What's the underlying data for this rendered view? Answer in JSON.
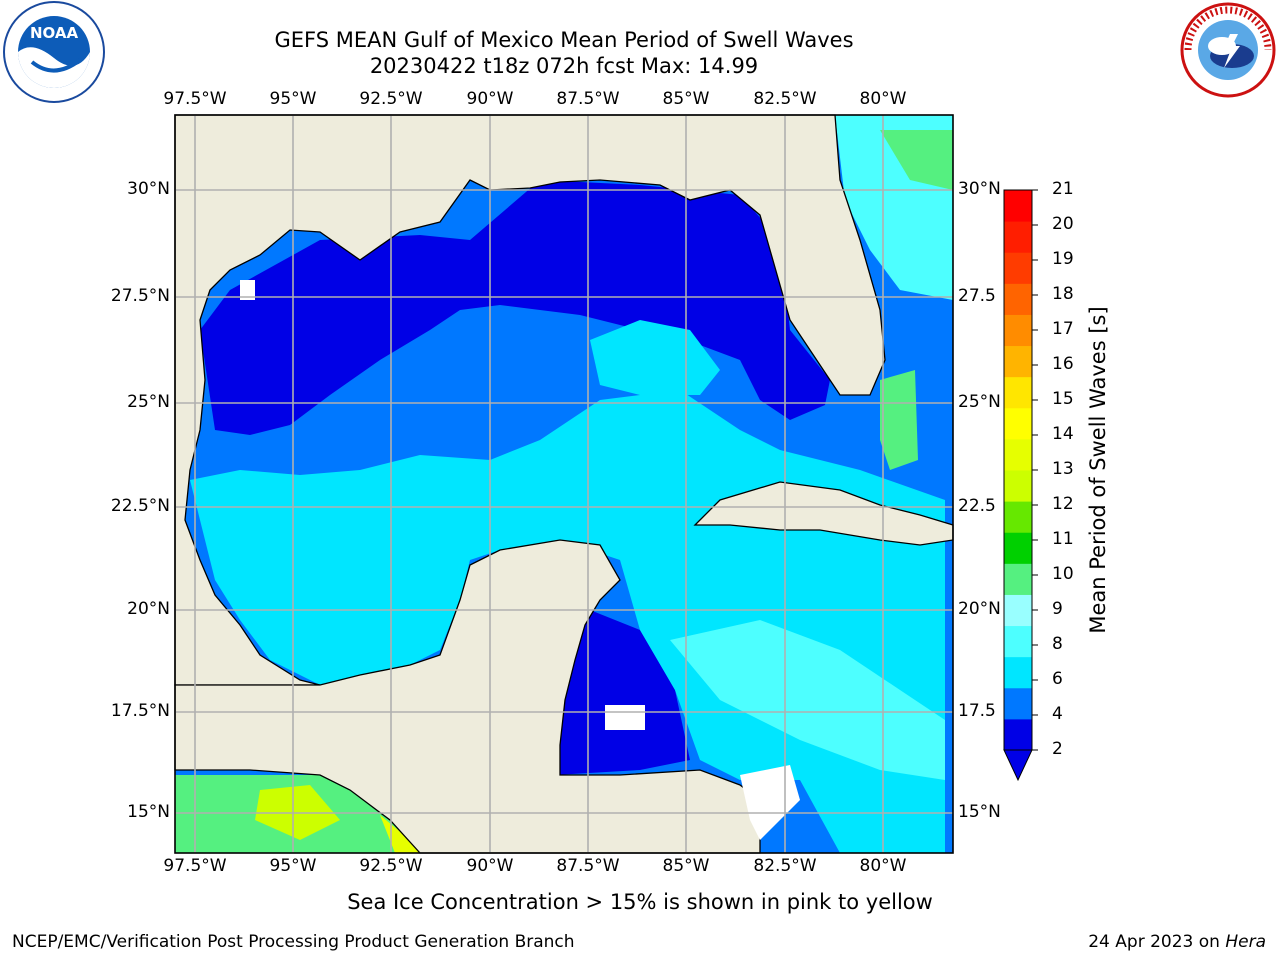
{
  "title": {
    "line1": "GEFS MEAN Gulf of Mexico Mean Period of Swell Waves",
    "line2": "20230422 t18z 072h fcst   Max: 14.99"
  },
  "logos": {
    "left": {
      "icon": "noaa-logo-icon",
      "text": "NOAA"
    },
    "right": {
      "icon": "nws-logo-icon",
      "text": "NATIONAL WEATHER SERVICE"
    }
  },
  "map": {
    "lon_ticks": [
      "97.5°W",
      "95°W",
      "92.5°W",
      "90°W",
      "87.5°W",
      "85°W",
      "82.5°W",
      "80°W"
    ],
    "lat_ticks_left": [
      "30°N",
      "27.5°N",
      "25°N",
      "22.5°N",
      "20°N",
      "17.5°N",
      "15°N"
    ],
    "lat_ticks_right": [
      "30°N",
      "27.5",
      "25°N",
      "22.5",
      "20°N",
      "17.5",
      "15°N"
    ],
    "colors": {
      "land": "#eeecdc",
      "grid": "#b0b0b0",
      "coast": "#000000"
    }
  },
  "colorbar": {
    "label": "Mean Period of Swell Waves [s]",
    "ticks": [
      "21",
      "20",
      "19",
      "18",
      "17",
      "16",
      "15",
      "14",
      "13",
      "12",
      "11",
      "10",
      "9",
      "8",
      "6",
      "4",
      "2"
    ],
    "colors": [
      "#0000e6",
      "#0078ff",
      "#00e6ff",
      "#4dffff",
      "#99ffff",
      "#55f080",
      "#00d000",
      "#66e800",
      "#ccff00",
      "#e6ff00",
      "#ffff00",
      "#ffe600",
      "#ffb400",
      "#ff8c00",
      "#ff6400",
      "#ff3c00",
      "#ff1e00",
      "#ff0000"
    ]
  },
  "footer": {
    "note": "Sea Ice Concentration > 15% is shown in pink to yellow",
    "left": "NCEP/EMC/Verification Post Processing Product Generation Branch",
    "right_date": "24 Apr 2023 on ",
    "right_host": "Hera"
  }
}
